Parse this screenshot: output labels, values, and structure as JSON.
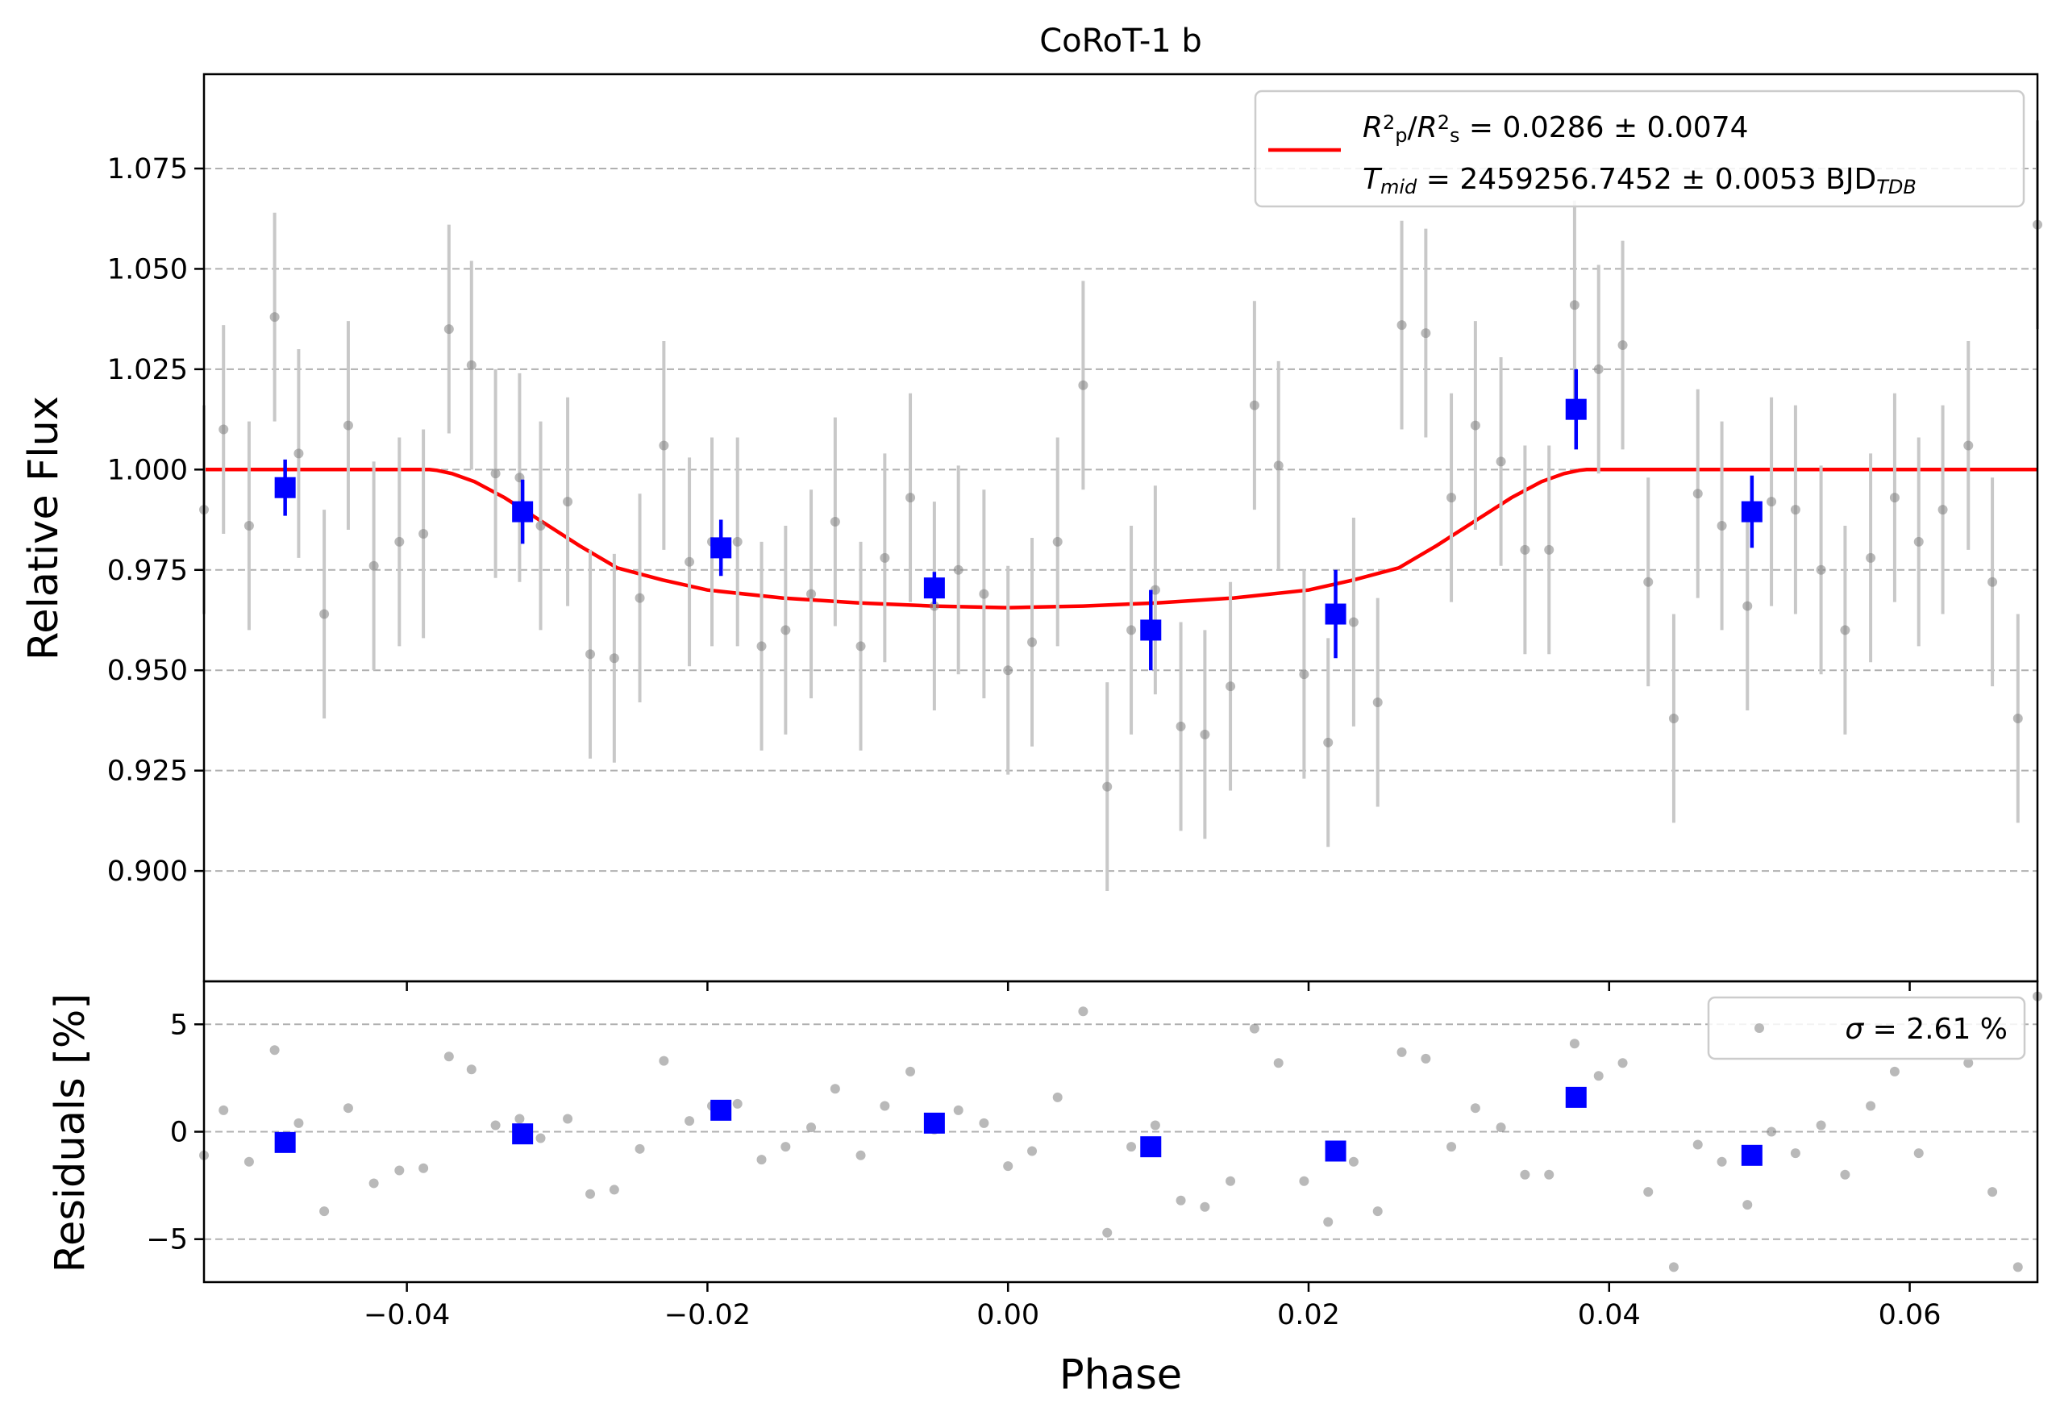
{
  "chart_data": [
    {
      "type": "scatter",
      "title": "CoRoT-1 b",
      "xlabel": "",
      "ylabel": "Relative Flux",
      "xlim": [
        -0.0535,
        0.0685
      ],
      "ylim": [
        0.8725,
        1.0985
      ],
      "grid": "horizontal dashed",
      "legend_position": "top-right",
      "x_ticks": [
        "−0.04",
        "−0.02",
        "0.00",
        "0.02",
        "0.04",
        "0.06"
      ],
      "y_ticks": [
        "0.900",
        "0.925",
        "0.950",
        "0.975",
        "1.000",
        "1.025",
        "1.050",
        "1.075"
      ],
      "legend": {
        "model_label_parts": [
          {
            "t": "R",
            "i": true
          },
          {
            "t": "2",
            "sup": true
          },
          {
            "t": "p",
            "sub": true
          },
          {
            "t": "/"
          },
          {
            "t": "R",
            "i": true
          },
          {
            "t": "2",
            "sup": true
          },
          {
            "t": "s",
            "sub": true
          },
          {
            "t": " = 0.0286 ± 0.0074"
          }
        ],
        "tmid_label_parts": [
          {
            "t": "T",
            "i": true
          },
          {
            "t": "mid",
            "sub": true,
            "i": true
          },
          {
            "t": " = 2459256.7452 ± 0.0053 BJD"
          },
          {
            "t": "TDB",
            "sub": true,
            "i": true
          }
        ]
      },
      "colors": {
        "raw": "#808080",
        "raw_err": "#c8c8c8",
        "binned": "#0000ff",
        "model": "#ff0000",
        "grid": "#b0b0b0"
      },
      "series": [
        {
          "kind": "raw",
          "x": [
            -0.0535,
            -0.0522,
            -0.0505,
            -0.0488,
            -0.0472,
            -0.0455,
            -0.0439,
            -0.0422,
            -0.0405,
            -0.0389,
            -0.0372,
            -0.0357,
            -0.0341,
            -0.0325,
            -0.0311,
            -0.0293,
            -0.0278,
            -0.0262,
            -0.0245,
            -0.0229,
            -0.0212,
            -0.0197,
            -0.018,
            -0.0164,
            -0.0148,
            -0.0131,
            -0.0115,
            -0.0098,
            -0.0082,
            -0.0065,
            -0.0049,
            -0.0033,
            -0.0016,
            0.0,
            0.0016,
            0.0033,
            0.005,
            0.0066,
            0.0082,
            0.0098,
            0.0115,
            0.0131,
            0.0148,
            0.0164,
            0.018,
            0.0197,
            0.0213,
            0.023,
            0.0246,
            0.0262,
            0.0278,
            0.0295,
            0.0311,
            0.0328,
            0.0344,
            0.036,
            0.0377,
            0.0393,
            0.0409,
            0.0426,
            0.0443,
            0.0459,
            0.0475,
            0.0492,
            0.0508,
            0.0524,
            0.0541,
            0.0557,
            0.0574,
            0.059,
            0.0606,
            0.0622,
            0.0639,
            0.0655,
            0.0672,
            0.0685
          ],
          "y": [
            0.99,
            1.01,
            0.986,
            1.038,
            1.004,
            0.964,
            1.011,
            0.976,
            0.982,
            0.984,
            1.035,
            1.026,
            0.999,
            0.998,
            0.986,
            0.992,
            0.954,
            0.953,
            0.968,
            1.006,
            0.977,
            0.982,
            0.982,
            0.956,
            0.96,
            0.969,
            0.987,
            0.956,
            0.978,
            0.993,
            0.966,
            0.975,
            0.969,
            0.95,
            0.957,
            0.982,
            1.021,
            0.921,
            0.96,
            0.97,
            0.936,
            0.934,
            0.946,
            1.016,
            1.001,
            0.949,
            0.932,
            0.962,
            0.942,
            1.036,
            1.034,
            0.993,
            1.011,
            1.002,
            0.98,
            0.98,
            1.041,
            1.025,
            1.031,
            0.972,
            0.938,
            0.994,
            0.986,
            0.966,
            0.992,
            0.99,
            0.975,
            0.96,
            0.978,
            0.993,
            0.982,
            0.99,
            1.006,
            0.972,
            0.938,
            1.061
          ],
          "err": [
            0.026,
            0.026,
            0.026,
            0.026,
            0.026,
            0.026,
            0.026,
            0.026,
            0.026,
            0.026,
            0.026,
            0.026,
            0.026,
            0.026,
            0.026,
            0.026,
            0.026,
            0.026,
            0.026,
            0.026,
            0.026,
            0.026,
            0.026,
            0.026,
            0.026,
            0.026,
            0.026,
            0.026,
            0.026,
            0.026,
            0.026,
            0.026,
            0.026,
            0.026,
            0.026,
            0.026,
            0.026,
            0.026,
            0.026,
            0.026,
            0.026,
            0.026,
            0.026,
            0.026,
            0.026,
            0.026,
            0.026,
            0.026,
            0.026,
            0.026,
            0.026,
            0.026,
            0.026,
            0.026,
            0.026,
            0.026,
            0.026,
            0.026,
            0.026,
            0.026,
            0.026,
            0.026,
            0.026,
            0.026,
            0.026,
            0.026,
            0.026,
            0.026,
            0.026,
            0.026,
            0.026,
            0.026,
            0.026,
            0.026,
            0.026,
            0.026
          ]
        },
        {
          "kind": "binned",
          "x": [
            -0.0481,
            -0.0323,
            -0.0191,
            -0.0049,
            0.0095,
            0.0218,
            0.0378,
            0.0495
          ],
          "y": [
            0.9955,
            0.9895,
            0.9805,
            0.9705,
            0.96,
            0.964,
            1.015,
            0.9895
          ],
          "err": [
            0.007,
            0.008,
            0.007,
            0.004,
            0.01,
            0.011,
            0.01,
            0.009
          ]
        },
        {
          "kind": "model",
          "x": [
            -0.0535,
            -0.0385,
            -0.038,
            -0.037,
            -0.0355,
            -0.0335,
            -0.031,
            -0.0285,
            -0.026,
            -0.023,
            -0.02,
            -0.015,
            -0.01,
            -0.005,
            0.0,
            0.005,
            0.01,
            0.015,
            0.02,
            0.023,
            0.026,
            0.0285,
            0.031,
            0.0335,
            0.0355,
            0.037,
            0.038,
            0.0385,
            0.0685
          ],
          "y": [
            1.0,
            1.0,
            0.9998,
            0.999,
            0.997,
            0.993,
            0.987,
            0.981,
            0.9755,
            0.9725,
            0.97,
            0.968,
            0.9668,
            0.966,
            0.9656,
            0.966,
            0.9668,
            0.968,
            0.97,
            0.9725,
            0.9755,
            0.981,
            0.987,
            0.993,
            0.997,
            0.999,
            0.9998,
            1.0,
            1.0
          ]
        }
      ]
    },
    {
      "type": "scatter",
      "xlabel": "Phase",
      "ylabel": "Residuals [%]",
      "xlim": [
        -0.0535,
        0.0685
      ],
      "ylim": [
        -7.0,
        7.0
      ],
      "grid": "horizontal dashed",
      "legend_position": "top-right",
      "x_ticks": [
        "−0.04",
        "−0.02",
        "0.00",
        "0.02",
        "0.04",
        "0.06"
      ],
      "y_ticks": [
        "−5",
        "0",
        "5"
      ],
      "legend": {
        "sigma_label_parts": [
          {
            "t": "σ",
            "i": true
          },
          {
            "t": " = 2.61 %"
          }
        ]
      },
      "series": [
        {
          "kind": "raw",
          "x": [
            -0.0535,
            -0.0522,
            -0.0505,
            -0.0488,
            -0.0472,
            -0.0455,
            -0.0439,
            -0.0422,
            -0.0405,
            -0.0389,
            -0.0372,
            -0.0357,
            -0.0341,
            -0.0325,
            -0.0311,
            -0.0293,
            -0.0278,
            -0.0262,
            -0.0245,
            -0.0229,
            -0.0212,
            -0.0197,
            -0.018,
            -0.0164,
            -0.0148,
            -0.0131,
            -0.0115,
            -0.0098,
            -0.0082,
            -0.0065,
            -0.0049,
            -0.0033,
            -0.0016,
            0.0,
            0.0016,
            0.0033,
            0.005,
            0.0066,
            0.0082,
            0.0098,
            0.0115,
            0.0131,
            0.0148,
            0.0164,
            0.018,
            0.0197,
            0.0213,
            0.023,
            0.0246,
            0.0262,
            0.0278,
            0.0295,
            0.0311,
            0.0328,
            0.0344,
            0.036,
            0.0377,
            0.0393,
            0.0409,
            0.0426,
            0.0443,
            0.0459,
            0.0475,
            0.0492,
            0.0508,
            0.0524,
            0.0541,
            0.0557,
            0.0574,
            0.059,
            0.0606,
            0.0622,
            0.0639,
            0.0655,
            0.0672,
            0.0685
          ],
          "y": [
            -1.1,
            1.0,
            -1.4,
            3.8,
            0.4,
            -3.7,
            1.1,
            -2.4,
            -1.8,
            -1.7,
            3.5,
            2.9,
            0.3,
            0.6,
            -0.3,
            0.6,
            -2.9,
            -2.7,
            -0.8,
            3.3,
            0.5,
            1.2,
            1.3,
            -1.3,
            -0.7,
            0.2,
            2.0,
            -1.1,
            1.2,
            2.8,
            0.1,
            1.0,
            0.4,
            -1.6,
            -0.9,
            1.6,
            5.6,
            -4.7,
            -0.7,
            0.3,
            -3.2,
            -3.5,
            -2.3,
            4.8,
            3.2,
            -2.3,
            -4.2,
            -1.4,
            -3.7,
            3.7,
            3.4,
            -0.7,
            1.1,
            0.2,
            -2.0,
            -2.0,
            4.1,
            2.6,
            3.2,
            -2.8,
            -6.3,
            -0.6,
            -1.4,
            -3.4,
            0.0,
            -1.0,
            0.3,
            -2.0,
            1.2,
            2.8,
            -1.0,
            4.8,
            3.2,
            -2.8,
            -6.3,
            6.3
          ]
        },
        {
          "kind": "binned",
          "x": [
            -0.0481,
            -0.0323,
            -0.0191,
            -0.0049,
            0.0095,
            0.0218,
            0.0378,
            0.0495
          ],
          "y": [
            -0.5,
            -0.1,
            1.0,
            0.4,
            -0.7,
            -0.9,
            1.6,
            -1.1
          ]
        }
      ]
    }
  ]
}
